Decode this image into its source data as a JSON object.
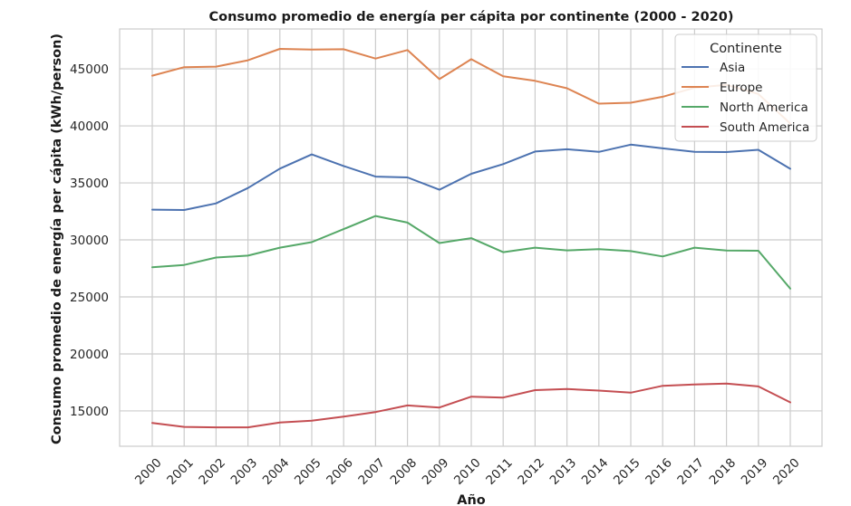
{
  "chart_data": {
    "type": "line",
    "title": "Consumo promedio de energía per cápita por continente (2000 - 2020)",
    "xlabel": "Año",
    "ylabel": "Consumo promedio de energía per cápita (kWh/person)",
    "x": [
      2000,
      2001,
      2002,
      2003,
      2004,
      2005,
      2006,
      2007,
      2008,
      2009,
      2010,
      2011,
      2012,
      2013,
      2014,
      2015,
      2016,
      2017,
      2018,
      2019,
      2020
    ],
    "x_tick_labels": [
      "2000",
      "2001",
      "2002",
      "2003",
      "2004",
      "2005",
      "2006",
      "2007",
      "2008",
      "2009",
      "2010",
      "2011",
      "2012",
      "2013",
      "2014",
      "2015",
      "2016",
      "2017",
      "2018",
      "2019",
      "2020"
    ],
    "ylim": [
      11900,
      48500
    ],
    "y_ticks": [
      15000,
      20000,
      25000,
      30000,
      35000,
      40000,
      45000
    ],
    "y_tick_labels": [
      "15000",
      "20000",
      "25000",
      "30000",
      "35000",
      "40000",
      "45000"
    ],
    "grid": true,
    "legend": {
      "title": "Continente",
      "placement": "top-right"
    },
    "series": [
      {
        "name": "Asia",
        "color": "#4c72b0",
        "values": [
          32650,
          32620,
          33200,
          34550,
          36250,
          37500,
          36480,
          35550,
          35480,
          34400,
          35800,
          36650,
          37750,
          37950,
          37720,
          38350,
          38030,
          37730,
          37700,
          37900,
          36230
        ]
      },
      {
        "name": "Europe",
        "color": "#dd8452",
        "values": [
          44400,
          45150,
          45200,
          45750,
          46750,
          46700,
          46720,
          45900,
          46650,
          44100,
          45850,
          44350,
          43950,
          43300,
          41950,
          42030,
          42550,
          43350,
          43600,
          42800,
          40200
        ]
      },
      {
        "name": "North America",
        "color": "#55a868",
        "values": [
          27600,
          27800,
          28450,
          28620,
          29320,
          29800,
          30950,
          32100,
          31520,
          29720,
          30150,
          28920,
          29320,
          29080,
          29180,
          29020,
          28550,
          29320,
          29070,
          29050,
          25720
        ]
      },
      {
        "name": "South America",
        "color": "#c44e52",
        "values": [
          13950,
          13600,
          13560,
          13560,
          13980,
          14150,
          14500,
          14900,
          15480,
          15300,
          16250,
          16170,
          16820,
          16920,
          16780,
          16600,
          17200,
          17320,
          17400,
          17150,
          15750
        ]
      }
    ]
  }
}
